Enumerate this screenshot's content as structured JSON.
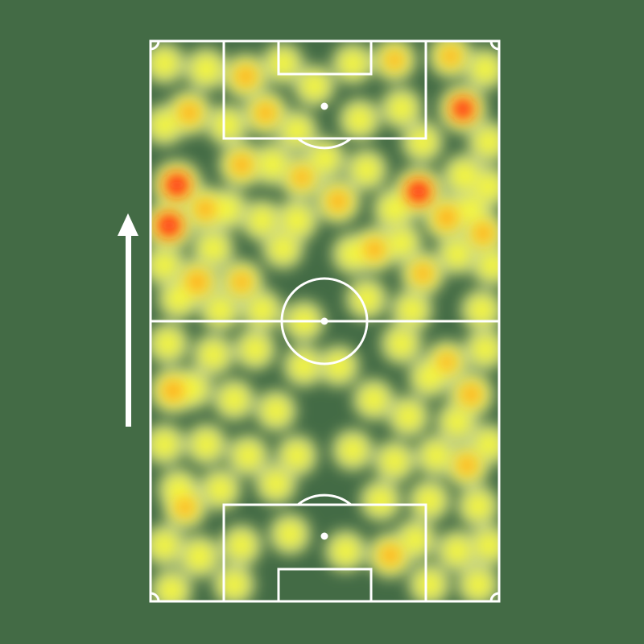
{
  "chart_data": {
    "type": "heatmap",
    "title": "",
    "subtitle": "",
    "xlabel": "",
    "ylabel": "",
    "x_range": [
      0,
      100
    ],
    "y_range": [
      0,
      100
    ],
    "attack_direction": "up",
    "grid": false,
    "legend": "none",
    "colors": {
      "background": "#436b45",
      "lines": "#ffffff",
      "low": "#d3de86",
      "mid": "#f8f83a",
      "high": "#ffa722",
      "max": "#ff1f1f"
    },
    "points": [
      [
        7.6,
        74.3,
        1.0
      ],
      [
        5.3,
        67.1,
        1.0
      ],
      [
        76.9,
        73.1,
        1.0
      ],
      [
        89.6,
        87.9,
        0.85
      ],
      [
        27.3,
        93.7,
        0.6
      ],
      [
        13.4,
        57.0,
        0.7
      ],
      [
        6.5,
        37.6,
        0.7
      ],
      [
        91.9,
        36.9,
        0.6
      ],
      [
        90.8,
        24.3,
        0.55
      ],
      [
        68.8,
        8.2,
        0.6
      ],
      [
        9.9,
        16.8,
        0.5
      ],
      [
        53.8,
        71.4,
        0.6
      ],
      [
        64.2,
        62.8,
        0.6
      ],
      [
        85.0,
        68.5,
        0.7
      ],
      [
        95.4,
        65.7,
        0.6
      ],
      [
        11.1,
        87.2,
        0.6
      ],
      [
        33.0,
        87.2,
        0.55
      ],
      [
        26.1,
        77.9,
        0.6
      ],
      [
        43.4,
        75.7,
        0.5
      ],
      [
        86.1,
        97.3,
        0.5
      ],
      [
        70.0,
        96.6,
        0.45
      ],
      [
        78.1,
        58.5,
        0.5
      ],
      [
        26.1,
        57.0,
        0.5
      ],
      [
        15.7,
        70.0,
        0.6
      ],
      [
        85.0,
        42.7,
        0.45
      ],
      [
        4,
        96,
        0.3
      ],
      [
        16,
        95,
        0.4
      ],
      [
        38,
        96,
        0.3
      ],
      [
        47,
        92,
        0.3
      ],
      [
        58,
        96,
        0.3
      ],
      [
        96,
        95,
        0.3
      ],
      [
        4,
        85,
        0.3
      ],
      [
        22,
        85,
        0.3
      ],
      [
        42,
        84,
        0.3
      ],
      [
        60,
        86,
        0.3
      ],
      [
        72,
        88,
        0.3
      ],
      [
        78,
        82,
        0.3
      ],
      [
        97,
        82,
        0.3
      ],
      [
        35,
        78,
        0.4
      ],
      [
        50,
        79,
        0.3
      ],
      [
        62,
        77,
        0.3
      ],
      [
        90,
        76,
        0.4
      ],
      [
        97,
        74,
        0.3
      ],
      [
        22,
        70,
        0.3
      ],
      [
        32,
        68,
        0.3
      ],
      [
        42,
        68,
        0.4
      ],
      [
        70,
        70,
        0.4
      ],
      [
        92,
        70,
        0.3
      ],
      [
        4,
        60,
        0.3
      ],
      [
        18,
        63,
        0.3
      ],
      [
        38,
        63,
        0.3
      ],
      [
        58,
        62,
        0.3
      ],
      [
        72,
        64,
        0.3
      ],
      [
        88,
        62,
        0.3
      ],
      [
        98,
        60,
        0.3
      ],
      [
        8,
        54,
        0.3
      ],
      [
        20,
        52,
        0.3
      ],
      [
        32,
        52,
        0.3
      ],
      [
        44,
        50,
        0.3
      ],
      [
        62,
        54,
        0.3
      ],
      [
        75,
        52,
        0.3
      ],
      [
        95,
        52,
        0.3
      ],
      [
        5,
        46,
        0.3
      ],
      [
        18,
        44,
        0.3
      ],
      [
        30,
        45,
        0.3
      ],
      [
        44,
        42,
        0.3
      ],
      [
        54,
        42,
        0.3
      ],
      [
        72,
        46,
        0.3
      ],
      [
        80,
        40,
        0.3
      ],
      [
        96,
        45,
        0.3
      ],
      [
        12,
        38,
        0.3
      ],
      [
        24,
        36,
        0.3
      ],
      [
        36,
        34,
        0.3
      ],
      [
        64,
        36,
        0.3
      ],
      [
        74,
        33,
        0.3
      ],
      [
        88,
        32,
        0.3
      ],
      [
        4,
        28,
        0.3
      ],
      [
        16,
        28,
        0.3
      ],
      [
        28,
        26,
        0.3
      ],
      [
        42,
        26,
        0.3
      ],
      [
        58,
        27,
        0.3
      ],
      [
        70,
        25,
        0.3
      ],
      [
        82,
        26,
        0.3
      ],
      [
        97,
        28,
        0.3
      ],
      [
        8,
        20,
        0.3
      ],
      [
        20,
        20,
        0.3
      ],
      [
        36,
        21,
        0.3
      ],
      [
        66,
        18,
        0.3
      ],
      [
        80,
        18,
        0.3
      ],
      [
        94,
        17,
        0.3
      ],
      [
        4,
        10,
        0.3
      ],
      [
        14,
        8,
        0.4
      ],
      [
        26,
        10,
        0.3
      ],
      [
        40,
        12,
        0.3
      ],
      [
        56,
        9,
        0.3
      ],
      [
        76,
        11,
        0.3
      ],
      [
        88,
        9,
        0.3
      ],
      [
        97,
        10,
        0.3
      ],
      [
        6,
        2,
        0.3
      ],
      [
        24,
        3,
        0.3
      ],
      [
        80,
        3,
        0.3
      ],
      [
        94,
        3,
        0.3
      ]
    ]
  }
}
